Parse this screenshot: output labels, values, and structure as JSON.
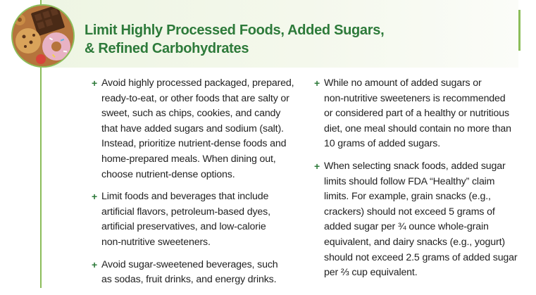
{
  "title_lines": [
    "Limit Highly Processed Foods, Added Sugars,",
    "& Refined Carbohydrates"
  ],
  "bullet_symbol": "+",
  "accent_color": "#2d7a3a",
  "rule_color": "#8cbd5a",
  "left_column": [
    {
      "lines": [
        "Avoid highly processed packaged, prepared,",
        "ready-to-eat, or other foods that are salty or",
        "sweet, such as chips, cookies, and candy",
        "that have added sugars and sodium (salt).",
        "Instead, prioritize nutrient-dense foods and",
        "home-prepared meals. When dining out,",
        "choose nutrient-dense options."
      ]
    },
    {
      "lines": [
        "Limit foods and beverages that include",
        "artificial flavors, petroleum-based dyes,",
        "artificial preservatives, and low-calorie",
        "non-nutritive sweeteners."
      ]
    },
    {
      "lines": [
        "Avoid sugar-sweetened beverages, such",
        "as sodas, fruit drinks, and energy drinks."
      ]
    }
  ],
  "right_column": [
    {
      "lines": [
        "While no amount of added sugars or",
        "non-nutritive sweeteners is recommended",
        "or considered part of a healthy or nutritious",
        "diet, one meal should contain no more than",
        "10 grams of added sugars."
      ]
    },
    {
      "lines": [
        "When selecting snack foods, added sugar",
        "limits should follow FDA “Healthy” claim",
        "limits. For example, grain snacks (e.g.,",
        "crackers) should not exceed 5 grams of",
        "added sugar per ¾ ounce whole-grain",
        "equivalent, and dairy snacks (e.g., yogurt)",
        "should not exceed 2.5 grams of added sugar",
        "per ⅔ cup equivalent."
      ]
    }
  ]
}
